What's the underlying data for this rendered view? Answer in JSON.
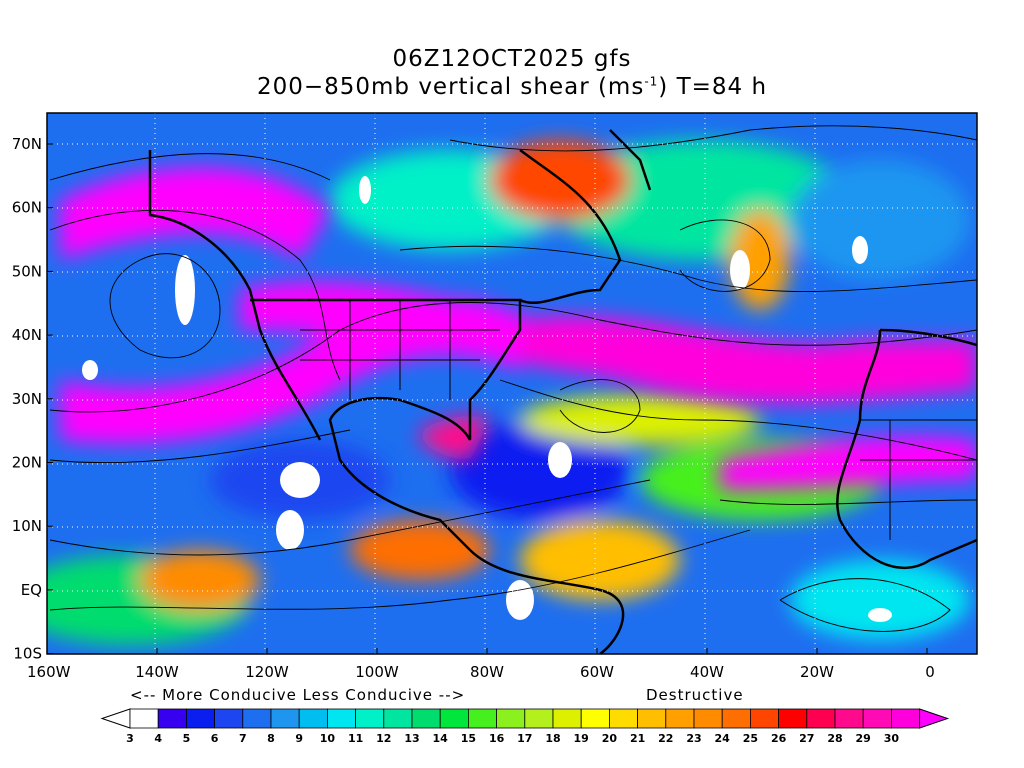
{
  "header": {
    "line1": "06Z12OCT2025 gfs",
    "line2": "200-850mb vertical shear (ms-1) T=84 h",
    "unit_main": "200−850mb vertical shear (ms",
    "unit_sup": "-1",
    "unit_tail": ") T=84 h"
  },
  "map": {
    "lon_ticks": [
      "160W",
      "140W",
      "120W",
      "100W",
      "80W",
      "60W",
      "40W",
      "20W",
      "0"
    ],
    "lat_ticks": [
      "70N",
      "60N",
      "50N",
      "40N",
      "30N",
      "20N",
      "10N",
      "EQ",
      "10S"
    ]
  },
  "legend_notes": {
    "left": "<-- More Conducive  Less Conducive -->",
    "right": "Destructive"
  },
  "colorbar": {
    "labels": [
      "3",
      "4",
      "5",
      "6",
      "7",
      "8",
      "9",
      "10",
      "11",
      "12",
      "13",
      "14",
      "15",
      "16",
      "17",
      "18",
      "19",
      "20",
      "21",
      "22",
      "23",
      "24",
      "25",
      "26",
      "27",
      "28",
      "29",
      "30"
    ],
    "colors": [
      "#ffffff",
      "#3700f0",
      "#0a1ef0",
      "#1e46f0",
      "#1e6ef0",
      "#1e96f0",
      "#00bef0",
      "#00e6f0",
      "#00f0c8",
      "#00e6a0",
      "#00dc6e",
      "#00e63c",
      "#46f01e",
      "#8cf01e",
      "#b4f01e",
      "#dcf000",
      "#ffff00",
      "#ffdc00",
      "#ffbe00",
      "#ffa000",
      "#ff8c00",
      "#ff6e00",
      "#ff4600",
      "#ff0000",
      "#ff0050",
      "#ff0a8c",
      "#ff0ab4",
      "#ff00dc",
      "#ff00ff"
    ]
  }
}
